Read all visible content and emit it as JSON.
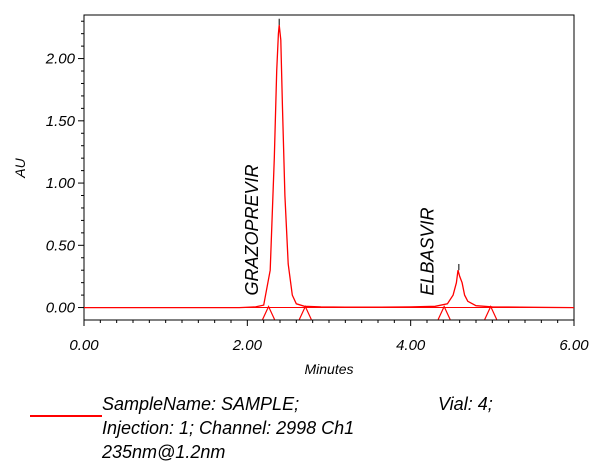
{
  "chart_data": {
    "type": "line",
    "xlabel": "Minutes",
    "ylabel": "AU",
    "xlim": [
      0,
      6
    ],
    "ylim": [
      -0.1,
      2.35
    ],
    "x_ticks": [
      "0.00",
      "2.00",
      "4.00",
      "6.00"
    ],
    "y_ticks": [
      "0.00",
      "0.50",
      "1.00",
      "1.50",
      "2.00"
    ],
    "series": [
      {
        "color": "#ff0000",
        "x": [
          0,
          0.5,
          1,
          1.5,
          1.9,
          2.1,
          2.2,
          2.28,
          2.33,
          2.36,
          2.38,
          2.39,
          2.41,
          2.43,
          2.46,
          2.5,
          2.55,
          2.6,
          2.7,
          2.9,
          3.2,
          3.6,
          4,
          4.3,
          4.45,
          4.52,
          4.56,
          4.58,
          4.6,
          4.63,
          4.66,
          4.7,
          4.8,
          5,
          5.5,
          6
        ],
        "y": [
          0,
          0,
          0,
          0,
          0,
          0.005,
          0.02,
          0.3,
          1.2,
          1.9,
          2.2,
          2.27,
          2.15,
          1.6,
          0.9,
          0.35,
          0.1,
          0.03,
          0.01,
          0.005,
          0.003,
          0.003,
          0.005,
          0.01,
          0.03,
          0.1,
          0.2,
          0.3,
          0.25,
          0.2,
          0.1,
          0.05,
          0.015,
          0.005,
          0.002,
          0
        ]
      }
    ],
    "baseline_markers_x": [
      2.26,
      2.71,
      4.41,
      4.98
    ],
    "annotations": [
      {
        "text": "GRAZOPREVIR",
        "x": 2.39
      },
      {
        "text": "ELBASVIR",
        "x": 4.62
      }
    ]
  },
  "legend": {
    "sample_name": "SampleName: SAMPLE;",
    "vial": "Vial: 4;",
    "injection_channel": "Injection: 1; Channel: 2998 Ch1",
    "wavelength": "235nm@1.2nm",
    "line_color": "#ff0000"
  }
}
